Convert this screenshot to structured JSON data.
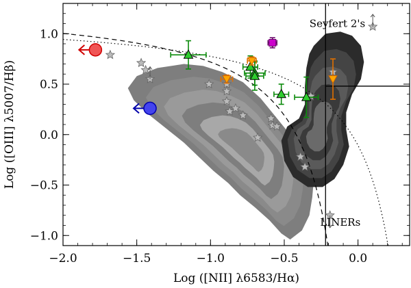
{
  "chart_data": {
    "type": "scatter",
    "xlabel": "Log ([NII] λ6583/Hα)",
    "ylabel": "Log ([OIII] λ5007/Hβ)",
    "xlim": [
      -2.0,
      0.35
    ],
    "ylim": [
      -1.1,
      1.3
    ],
    "x_ticks": [
      -2.0,
      -1.5,
      -1.0,
      -0.5,
      0.0
    ],
    "x_tick_labels": [
      "−2.0",
      "−1.5",
      "−1.0",
      "−0.5",
      "0.0"
    ],
    "y_ticks": [
      -1.0,
      -0.5,
      0.0,
      0.5,
      1.0
    ],
    "y_tick_labels": [
      "−1.0",
      "−0.5",
      "0.0",
      "0.5",
      "1.0"
    ],
    "grid": false,
    "region_labels": [
      {
        "text": "Seyfert 2's",
        "x": -0.14,
        "y": 1.1
      },
      {
        "text": "LINERs",
        "x": -0.12,
        "y": -0.87
      }
    ],
    "dividers": {
      "vertical_line_x": -0.22,
      "horizontal_line_y": 0.48,
      "horizontal_line_x_from": -0.22
    },
    "curves": [
      {
        "name": "dashed",
        "style": "dashed",
        "formula": "0.61/(x-0.05)+1.3",
        "x_max": -0.02
      },
      {
        "name": "dotted",
        "style": "dotted",
        "formula": "0.61/(x-0.47)+1.19",
        "x_max": 0.3
      }
    ],
    "contours": {
      "star_forming_light": [
        [
          -1.18,
          0.7
        ],
        [
          -1.05,
          0.68
        ],
        [
          -0.92,
          0.62
        ],
        [
          -0.78,
          0.52
        ],
        [
          -0.66,
          0.36
        ],
        [
          -0.56,
          0.18
        ],
        [
          -0.46,
          0.0
        ],
        [
          -0.38,
          -0.14
        ],
        [
          -0.32,
          -0.28
        ],
        [
          -0.3,
          -0.45
        ],
        [
          -0.31,
          -0.62
        ],
        [
          -0.33,
          -0.8
        ],
        [
          -0.38,
          -0.95
        ],
        [
          -0.46,
          -1.04
        ],
        [
          -0.52,
          -0.98
        ],
        [
          -0.6,
          -0.85
        ],
        [
          -0.7,
          -0.72
        ],
        [
          -0.8,
          -0.6
        ],
        [
          -0.88,
          -0.48
        ],
        [
          -0.98,
          -0.36
        ],
        [
          -1.08,
          -0.22
        ],
        [
          -1.18,
          -0.08
        ],
        [
          -1.3,
          0.06
        ],
        [
          -1.42,
          0.2
        ],
        [
          -1.52,
          0.34
        ],
        [
          -1.56,
          0.46
        ],
        [
          -1.5,
          0.58
        ],
        [
          -1.36,
          0.66
        ]
      ],
      "agn_dark": [
        [
          -0.3,
          0.88
        ],
        [
          -0.22,
          1.0
        ],
        [
          -0.12,
          1.02
        ],
        [
          -0.04,
          0.98
        ],
        [
          0.02,
          0.88
        ],
        [
          0.04,
          0.72
        ],
        [
          0.02,
          0.55
        ],
        [
          -0.04,
          0.4
        ],
        [
          -0.08,
          0.22
        ],
        [
          -0.08,
          0.05
        ],
        [
          -0.06,
          -0.12
        ],
        [
          -0.1,
          -0.3
        ],
        [
          -0.16,
          -0.44
        ],
        [
          -0.24,
          -0.52
        ],
        [
          -0.34,
          -0.52
        ],
        [
          -0.44,
          -0.42
        ],
        [
          -0.5,
          -0.26
        ],
        [
          -0.52,
          -0.06
        ],
        [
          -0.48,
          0.08
        ],
        [
          -0.4,
          0.16
        ],
        [
          -0.36,
          0.3
        ],
        [
          -0.36,
          0.48
        ],
        [
          -0.35,
          0.66
        ],
        [
          -0.33,
          0.8
        ]
      ]
    },
    "series": [
      {
        "marker": "star",
        "color": "#bbbbbb",
        "points": [
          [
            -1.68,
            0.79
          ],
          [
            -1.47,
            0.71
          ],
          [
            -1.44,
            0.64
          ],
          [
            -1.41,
            0.55
          ],
          [
            -1.01,
            0.5
          ],
          [
            -0.89,
            0.5
          ],
          [
            -0.89,
            0.43
          ],
          [
            -0.89,
            0.33
          ],
          [
            -0.87,
            0.23
          ],
          [
            -0.83,
            0.26
          ],
          [
            -0.78,
            0.19
          ],
          [
            -0.68,
            -0.03
          ],
          [
            -0.59,
            0.16
          ],
          [
            -0.58,
            0.09
          ],
          [
            -0.55,
            0.08
          ],
          [
            -0.39,
            -0.22
          ],
          [
            -0.36,
            -0.32
          ],
          [
            -0.32,
            0.38
          ],
          [
            -0.17,
            0.62
          ],
          [
            0.1,
            1.07
          ],
          [
            -0.19,
            -0.8
          ]
        ],
        "upper_limit_arrows": [
          [
            -1.41,
            0.55
          ],
          [
            0.1,
            1.07
          ],
          [
            -0.19,
            -0.8
          ]
        ]
      },
      {
        "marker": "triangle",
        "color": "#2ecc2e",
        "points": [
          {
            "x": -1.15,
            "y": 0.79,
            "xerr": 0.12,
            "yerr": 0.14
          },
          {
            "x": -0.73,
            "y": 0.67,
            "xerr": 0.05,
            "yerr": 0.11
          },
          {
            "x": -0.7,
            "y": 0.61,
            "xerr": 0.07,
            "yerr": 0.12
          },
          {
            "x": -0.7,
            "y": 0.58,
            "xerr": 0.06,
            "yerr": 0.14
          },
          {
            "x": -0.52,
            "y": 0.4,
            "xerr": 0.05,
            "yerr": 0.1
          },
          {
            "x": -0.35,
            "y": 0.37,
            "xerr": 0.08,
            "yerr": 0.2
          }
        ]
      },
      {
        "marker": "triangle-down",
        "color": "#ffa500",
        "points": [
          {
            "x": -0.89,
            "y": 0.55,
            "xerr": 0.04,
            "yerr": 0.04
          },
          {
            "x": -0.72,
            "y": 0.73,
            "xerr": 0.03,
            "yerr": 0.04
          },
          {
            "x": -0.17,
            "y": 0.55,
            "xerr": 0.0,
            "yerr": 0.2
          }
        ]
      },
      {
        "marker": "square",
        "color": "#cc00cc",
        "points": [
          {
            "x": -0.58,
            "y": 0.91,
            "xerr": 0.03,
            "yerr": 0.05
          }
        ]
      },
      {
        "marker": "circle",
        "color": "#f05555",
        "points": [
          {
            "x": -1.78,
            "y": 0.84,
            "xerr": 0.0,
            "yerr": 0.03
          }
        ],
        "upper_limit_left": true
      },
      {
        "marker": "circle",
        "color": "#4444ee",
        "points": [
          {
            "x": -1.41,
            "y": 0.26,
            "xerr": 0.0,
            "yerr": 0.03
          }
        ],
        "upper_limit_left": true
      }
    ]
  }
}
